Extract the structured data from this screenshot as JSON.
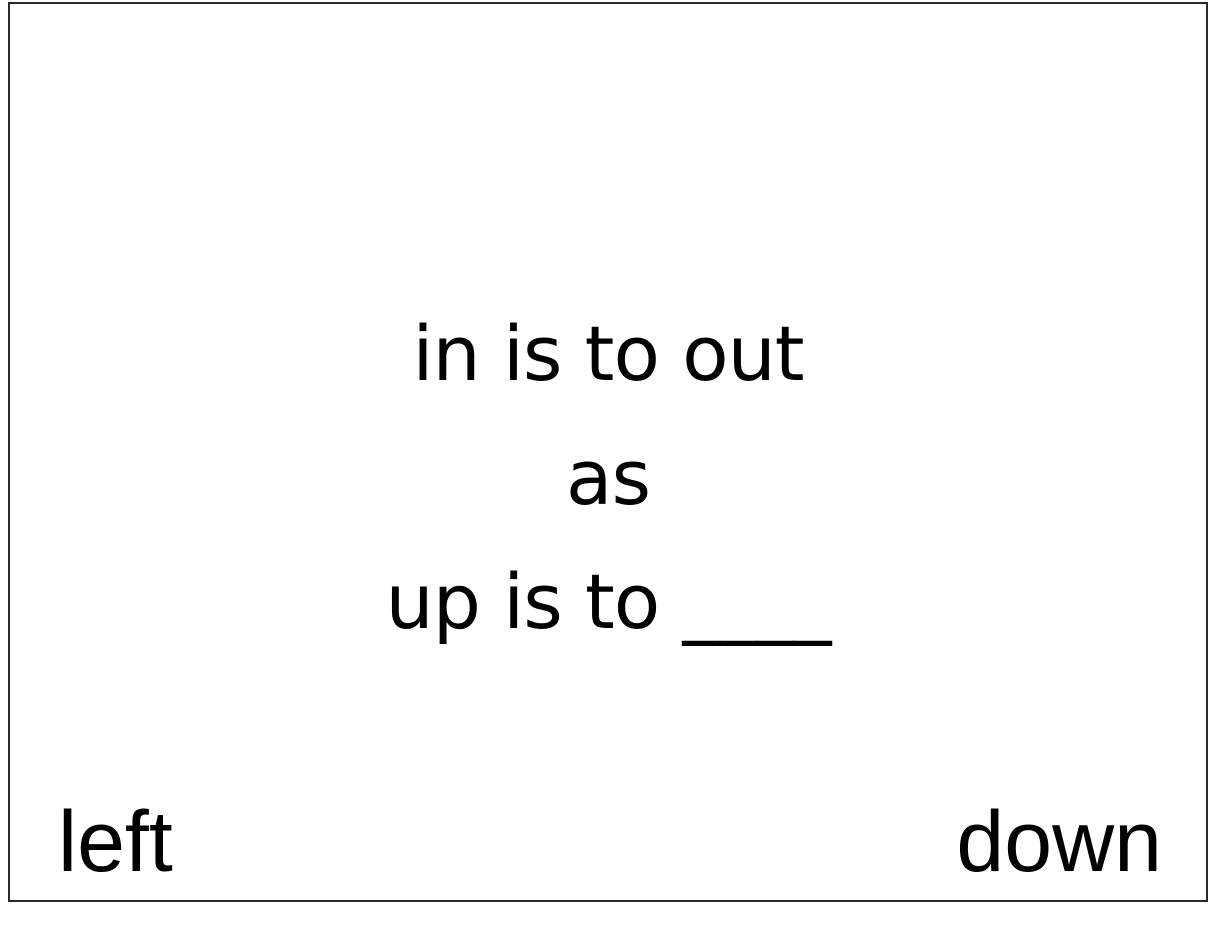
{
  "prompt": {
    "line1": "in is to out",
    "line2": "as",
    "line3": "up is to ____"
  },
  "choices": {
    "left": "left",
    "right": "down"
  }
}
